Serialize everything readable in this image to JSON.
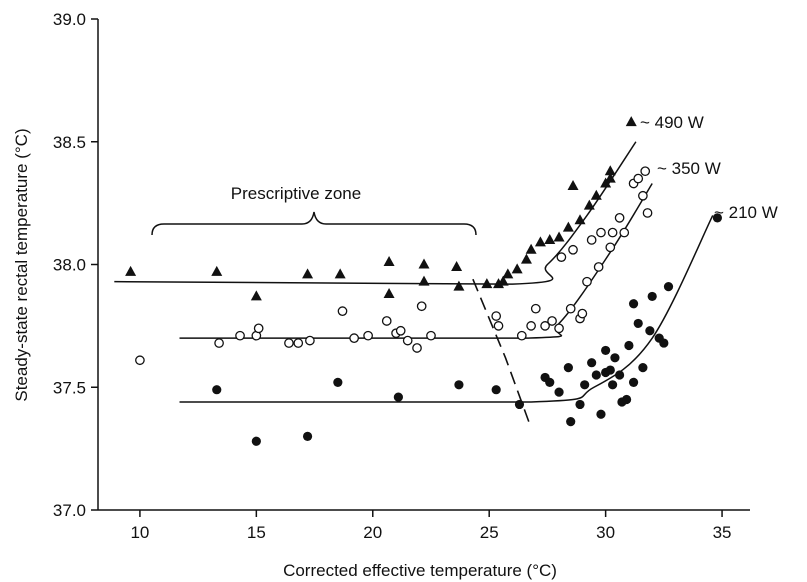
{
  "chart_data": {
    "type": "scatter",
    "xlabel": "Corrected effective temperature (°C)",
    "ylabel": "Steady-state rectal temperature (°C)",
    "xlim": [
      8.2,
      36.2
    ],
    "ylim": [
      37.0,
      39.0
    ],
    "xticks": [
      10,
      15,
      20,
      25,
      30,
      35
    ],
    "yticks": [
      37.0,
      37.5,
      38.0,
      38.5,
      39.0
    ],
    "xtick_labels": [
      "10",
      "15",
      "20",
      "25",
      "30",
      "35"
    ],
    "ytick_labels": [
      "37.0",
      "37.5",
      "38.0",
      "38.5",
      "39.0"
    ],
    "grid": false,
    "annotations": {
      "zone": "Prescriptive zone",
      "w490": "~ 490 W",
      "w350": "~ 350 W",
      "w210": "~ 210 W"
    },
    "series": [
      {
        "marker": "triangle-filled",
        "points": [
          [
            9.6,
            37.97
          ],
          [
            13.3,
            37.97
          ],
          [
            15.0,
            37.87
          ],
          [
            17.2,
            37.96
          ],
          [
            18.6,
            37.96
          ],
          [
            20.7,
            38.01
          ],
          [
            20.7,
            37.88
          ],
          [
            22.2,
            38.0
          ],
          [
            22.2,
            37.93
          ],
          [
            23.6,
            37.99
          ],
          [
            23.7,
            37.91
          ],
          [
            24.9,
            37.92
          ],
          [
            25.4,
            37.92
          ],
          [
            25.6,
            37.93
          ],
          [
            25.8,
            37.96
          ],
          [
            26.2,
            37.98
          ],
          [
            26.6,
            38.02
          ],
          [
            26.8,
            38.06
          ],
          [
            27.2,
            38.09
          ],
          [
            27.6,
            38.1
          ],
          [
            28.0,
            38.11
          ],
          [
            28.4,
            38.15
          ],
          [
            28.6,
            38.32
          ],
          [
            28.9,
            38.18
          ],
          [
            29.3,
            38.24
          ],
          [
            29.6,
            38.28
          ],
          [
            30.0,
            38.33
          ],
          [
            30.2,
            38.35
          ],
          [
            30.2,
            38.38
          ],
          [
            31.1,
            38.58
          ]
        ],
        "curve": [
          [
            8.9,
            37.93
          ],
          [
            26.0,
            37.92
          ],
          [
            27.5,
            38.0
          ],
          [
            29.2,
            38.2
          ],
          [
            31.3,
            38.5
          ]
        ]
      },
      {
        "marker": "circle-open",
        "points": [
          [
            10.0,
            37.61
          ],
          [
            13.4,
            37.68
          ],
          [
            14.3,
            37.71
          ],
          [
            15.0,
            37.71
          ],
          [
            15.1,
            37.74
          ],
          [
            16.4,
            37.68
          ],
          [
            16.8,
            37.68
          ],
          [
            17.3,
            37.69
          ],
          [
            18.7,
            37.81
          ],
          [
            19.2,
            37.7
          ],
          [
            19.8,
            37.71
          ],
          [
            20.6,
            37.77
          ],
          [
            21.0,
            37.72
          ],
          [
            21.2,
            37.73
          ],
          [
            21.5,
            37.69
          ],
          [
            21.9,
            37.66
          ],
          [
            22.1,
            37.83
          ],
          [
            22.5,
            37.71
          ],
          [
            25.3,
            37.79
          ],
          [
            25.4,
            37.75
          ],
          [
            26.4,
            37.71
          ],
          [
            26.8,
            37.75
          ],
          [
            27.0,
            37.82
          ],
          [
            27.4,
            37.75
          ],
          [
            27.7,
            37.77
          ],
          [
            28.0,
            37.74
          ],
          [
            28.1,
            38.03
          ],
          [
            28.5,
            37.82
          ],
          [
            28.6,
            38.06
          ],
          [
            28.9,
            37.78
          ],
          [
            29.0,
            37.8
          ],
          [
            29.2,
            37.93
          ],
          [
            29.4,
            38.1
          ],
          [
            29.7,
            37.99
          ],
          [
            29.8,
            38.13
          ],
          [
            30.2,
            38.07
          ],
          [
            30.3,
            38.13
          ],
          [
            30.6,
            38.19
          ],
          [
            30.8,
            38.13
          ],
          [
            31.2,
            38.33
          ],
          [
            31.4,
            38.35
          ],
          [
            31.6,
            38.28
          ],
          [
            31.7,
            38.38
          ],
          [
            31.8,
            38.21
          ]
        ],
        "curve": [
          [
            11.7,
            37.7
          ],
          [
            26.6,
            37.7
          ],
          [
            28.0,
            37.76
          ],
          [
            30.2,
            38.05
          ],
          [
            32.0,
            38.33
          ]
        ]
      },
      {
        "marker": "circle-filled",
        "points": [
          [
            13.3,
            37.49
          ],
          [
            15.0,
            37.28
          ],
          [
            17.2,
            37.3
          ],
          [
            18.5,
            37.52
          ],
          [
            21.1,
            37.46
          ],
          [
            23.7,
            37.51
          ],
          [
            25.3,
            37.49
          ],
          [
            26.3,
            37.43
          ],
          [
            27.4,
            37.54
          ],
          [
            27.6,
            37.52
          ],
          [
            28.0,
            37.48
          ],
          [
            28.4,
            37.58
          ],
          [
            28.5,
            37.36
          ],
          [
            28.9,
            37.43
          ],
          [
            29.1,
            37.51
          ],
          [
            29.4,
            37.6
          ],
          [
            29.6,
            37.55
          ],
          [
            29.8,
            37.39
          ],
          [
            30.0,
            37.56
          ],
          [
            30.0,
            37.65
          ],
          [
            30.2,
            37.57
          ],
          [
            30.3,
            37.51
          ],
          [
            30.4,
            37.62
          ],
          [
            30.6,
            37.55
          ],
          [
            30.7,
            37.44
          ],
          [
            30.9,
            37.45
          ],
          [
            31.0,
            37.67
          ],
          [
            31.2,
            37.52
          ],
          [
            31.2,
            37.84
          ],
          [
            31.4,
            37.76
          ],
          [
            31.6,
            37.58
          ],
          [
            31.9,
            37.73
          ],
          [
            32.0,
            37.87
          ],
          [
            32.3,
            37.7
          ],
          [
            32.5,
            37.68
          ],
          [
            32.7,
            37.91
          ],
          [
            34.8,
            38.19
          ]
        ],
        "curve": [
          [
            11.7,
            37.44
          ],
          [
            26.8,
            37.44
          ],
          [
            29.5,
            37.5
          ],
          [
            32.0,
            37.7
          ],
          [
            34.6,
            38.2
          ]
        ]
      }
    ],
    "boundary_line": [
      [
        24.3,
        37.94
      ],
      [
        25.7,
        37.62
      ],
      [
        26.7,
        37.36
      ]
    ]
  }
}
